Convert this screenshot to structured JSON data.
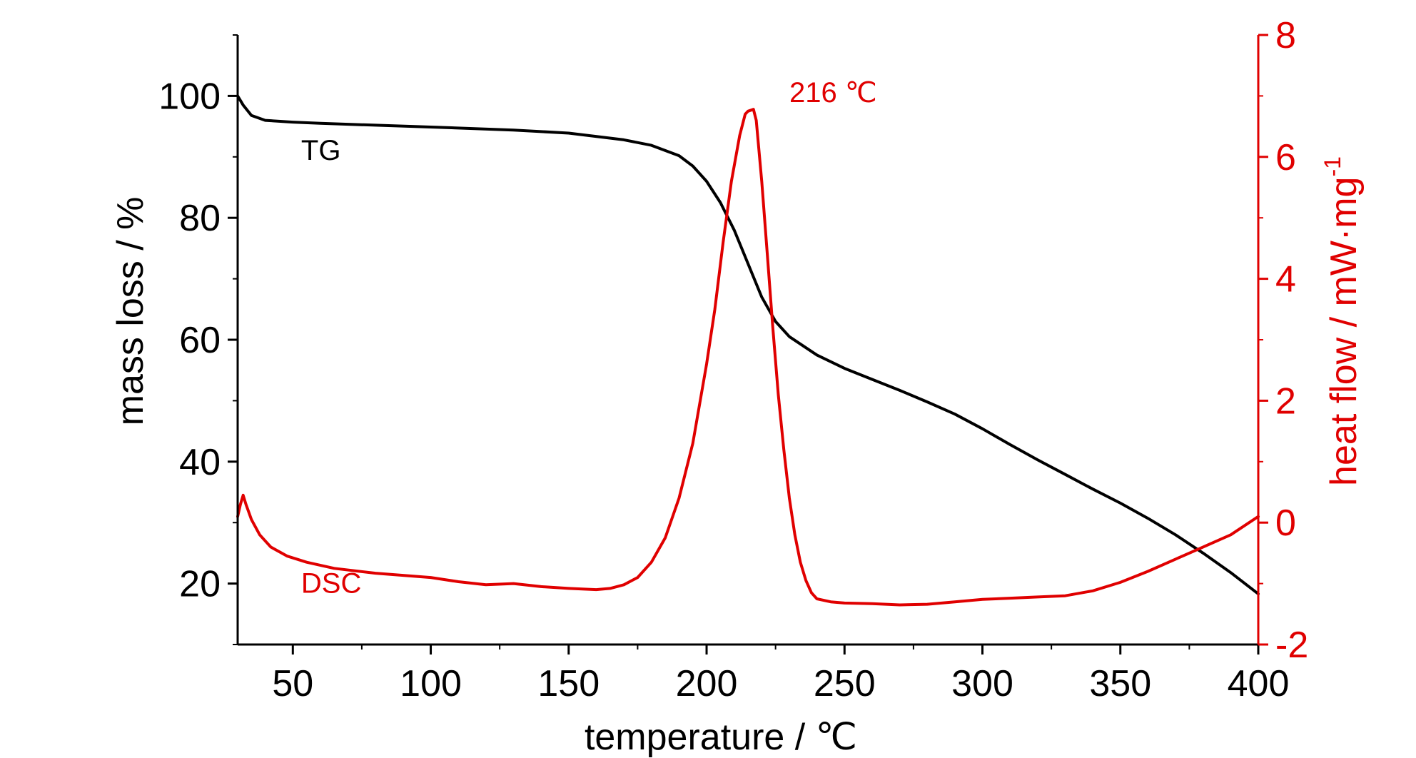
{
  "chart_data": {
    "type": "line",
    "xlabel": "temperature / ℃",
    "ylabel_left": "mass loss / %",
    "ylabel_right": "heat flow / mW·mg",
    "ylabel_right_sup": "-1",
    "xlim": [
      30,
      400
    ],
    "ylim_left": [
      10,
      110
    ],
    "ylim_right": [
      -2,
      8
    ],
    "x_ticks": [
      50,
      100,
      150,
      200,
      250,
      300,
      350,
      400
    ],
    "y_left_ticks": [
      20,
      40,
      60,
      80,
      100
    ],
    "y_right_ticks": [
      -2,
      0,
      2,
      4,
      6,
      8
    ],
    "colors": {
      "TG": "#000000",
      "DSC": "#e00000"
    },
    "grid": false,
    "series": [
      {
        "name": "TG",
        "axis": "left",
        "x": [
          30,
          32,
          35,
          40,
          50,
          60,
          80,
          100,
          130,
          150,
          170,
          180,
          190,
          195,
          200,
          205,
          210,
          215,
          220,
          225,
          230,
          240,
          250,
          260,
          270,
          280,
          290,
          300,
          310,
          320,
          330,
          340,
          350,
          360,
          370,
          380,
          390,
          400
        ],
        "values": [
          100,
          98.5,
          96.8,
          96.0,
          95.7,
          95.5,
          95.2,
          94.9,
          94.4,
          93.9,
          92.8,
          91.9,
          90.2,
          88.5,
          86.0,
          82.5,
          78.0,
          72.5,
          67.0,
          63.0,
          60.5,
          57.5,
          55.3,
          53.5,
          51.7,
          49.8,
          47.8,
          45.4,
          42.8,
          40.3,
          37.9,
          35.5,
          33.2,
          30.7,
          28.0,
          25.0,
          21.8,
          18.3
        ]
      },
      {
        "name": "DSC",
        "axis": "right",
        "x": [
          30,
          31,
          32,
          33,
          35,
          38,
          42,
          48,
          55,
          65,
          80,
          100,
          110,
          120,
          130,
          140,
          150,
          160,
          165,
          170,
          175,
          180,
          185,
          190,
          195,
          200,
          203,
          206,
          209,
          212,
          214,
          215,
          217,
          218,
          220,
          222,
          224,
          226,
          228,
          230,
          232,
          234,
          236,
          238,
          240,
          245,
          250,
          260,
          270,
          280,
          290,
          300,
          310,
          320,
          330,
          340,
          350,
          360,
          370,
          380,
          390,
          400
        ],
        "values": [
          0.1,
          0.3,
          0.45,
          0.3,
          0.05,
          -0.2,
          -0.4,
          -0.55,
          -0.65,
          -0.75,
          -0.83,
          -0.9,
          -0.97,
          -1.02,
          -1.0,
          -1.05,
          -1.08,
          -1.1,
          -1.08,
          -1.02,
          -0.9,
          -0.65,
          -0.25,
          0.4,
          1.3,
          2.6,
          3.5,
          4.6,
          5.6,
          6.35,
          6.7,
          6.75,
          6.78,
          6.6,
          5.6,
          4.4,
          3.2,
          2.1,
          1.2,
          0.4,
          -0.2,
          -0.65,
          -0.95,
          -1.15,
          -1.25,
          -1.3,
          -1.32,
          -1.33,
          -1.35,
          -1.34,
          -1.3,
          -1.26,
          -1.24,
          -1.22,
          -1.2,
          -1.12,
          -0.98,
          -0.8,
          -0.6,
          -0.4,
          -0.2,
          0.1
        ]
      }
    ],
    "annotations": [
      {
        "text": "TG",
        "x": 53,
        "y": 89.5,
        "axis": "left",
        "color": "#000000"
      },
      {
        "text": "DSC",
        "x": 53,
        "y": -1.15,
        "axis": "right",
        "color": "#e00000"
      },
      {
        "text": "216 ℃",
        "x": 230,
        "y": 6.9,
        "axis": "right",
        "color": "#e00000"
      }
    ]
  }
}
